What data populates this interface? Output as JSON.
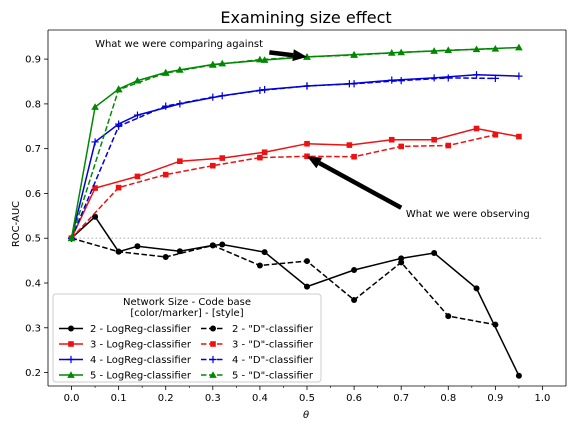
{
  "chart_data": {
    "type": "line",
    "title": "Examining size effect",
    "xlabel": "θ",
    "ylabel": "ROC-AUC",
    "xlim": [
      -0.05,
      1.05
    ],
    "ylim": [
      0.17,
      0.965
    ],
    "xticks": [
      0.0,
      0.1,
      0.2,
      0.3,
      0.4,
      0.5,
      0.6,
      0.7,
      0.8,
      0.9,
      1.0
    ],
    "xtick_labels": [
      "0.0",
      "0.1",
      "0.2",
      "0.3",
      "0.4",
      "0.5",
      "0.6",
      "0.7",
      "0.8",
      "0.9",
      "1.0"
    ],
    "yticks": [
      0.2,
      0.3,
      0.4,
      0.5,
      0.6,
      0.7,
      0.8,
      0.9
    ],
    "ytick_labels": [
      "0.2",
      "0.3",
      "0.4",
      "0.5",
      "0.6",
      "0.7",
      "0.8",
      "0.9"
    ],
    "reference_line": {
      "y": 0.5,
      "style": "dotted",
      "color": "#bbbbbb"
    },
    "grid": false,
    "legend": {
      "title": "Network Size - Code base\n[color/marker] - [style]",
      "placement": "lower-left",
      "columns": 2
    },
    "series": [
      {
        "name": "2 - LogReg-classifier",
        "color": "#000000",
        "marker": "circle",
        "dash": "solid",
        "x": [
          0.0,
          0.05,
          0.1,
          0.14,
          0.23,
          0.3,
          0.32,
          0.41,
          0.5,
          0.6,
          0.7,
          0.77,
          0.86,
          0.95
        ],
        "y": [
          0.5,
          0.548,
          0.47,
          0.482,
          0.471,
          0.484,
          0.486,
          0.469,
          0.392,
          0.429,
          0.455,
          0.467,
          0.388,
          0.193
        ]
      },
      {
        "name": "3 - LogReg-classifier",
        "color": "#ee1111",
        "marker": "square",
        "dash": "solid",
        "x": [
          0.0,
          0.05,
          0.14,
          0.23,
          0.32,
          0.41,
          0.5,
          0.59,
          0.68,
          0.77,
          0.86,
          0.95
        ],
        "y": [
          0.5,
          0.612,
          0.638,
          0.672,
          0.679,
          0.692,
          0.711,
          0.708,
          0.72,
          0.72,
          0.745,
          0.727
        ]
      },
      {
        "name": "4 - LogReg-classifier",
        "color": "#0000dd",
        "marker": "plus",
        "dash": "solid",
        "x": [
          0.0,
          0.05,
          0.1,
          0.14,
          0.23,
          0.32,
          0.41,
          0.5,
          0.59,
          0.68,
          0.77,
          0.86,
          0.95
        ],
        "y": [
          0.5,
          0.715,
          0.755,
          0.775,
          0.8,
          0.818,
          0.832,
          0.84,
          0.845,
          0.853,
          0.858,
          0.865,
          0.862
        ]
      },
      {
        "name": "5 - LogReg-classifier",
        "color": "#008800",
        "marker": "triangle",
        "dash": "solid",
        "x": [
          0.0,
          0.05,
          0.1,
          0.14,
          0.2,
          0.23,
          0.3,
          0.32,
          0.41,
          0.5,
          0.6,
          0.68,
          0.77,
          0.86,
          0.95
        ],
        "y": [
          0.5,
          0.793,
          0.833,
          0.852,
          0.87,
          0.876,
          0.888,
          0.89,
          0.898,
          0.905,
          0.91,
          0.914,
          0.918,
          0.922,
          0.926
        ]
      },
      {
        "name": "2 - \"D\"-classifier",
        "color": "#000000",
        "marker": "circle",
        "dash": "dashed",
        "x": [
          0.0,
          0.1,
          0.2,
          0.3,
          0.4,
          0.5,
          0.6,
          0.7,
          0.8,
          0.9
        ],
        "y": [
          0.5,
          0.47,
          0.458,
          0.484,
          0.439,
          0.449,
          0.362,
          0.446,
          0.326,
          0.307
        ]
      },
      {
        "name": "3 - \"D\"-classifier",
        "color": "#ee1111",
        "marker": "square",
        "dash": "dashed",
        "x": [
          0.0,
          0.1,
          0.2,
          0.3,
          0.4,
          0.5,
          0.6,
          0.7,
          0.8,
          0.9
        ],
        "y": [
          0.5,
          0.613,
          0.642,
          0.662,
          0.68,
          0.683,
          0.682,
          0.705,
          0.707,
          0.731
        ]
      },
      {
        "name": "4 - \"D\"-classifier",
        "color": "#0000dd",
        "marker": "plus",
        "dash": "dashed",
        "x": [
          0.0,
          0.1,
          0.2,
          0.3,
          0.4,
          0.5,
          0.6,
          0.7,
          0.8,
          0.9
        ],
        "y": [
          0.5,
          0.75,
          0.795,
          0.815,
          0.83,
          0.84,
          0.845,
          0.852,
          0.858,
          0.857
        ]
      },
      {
        "name": "5 - \"D\"-classifier",
        "color": "#008800",
        "marker": "triangle",
        "dash": "dashed",
        "x": [
          0.0,
          0.1,
          0.2,
          0.3,
          0.4,
          0.5,
          0.6,
          0.7,
          0.8,
          0.9
        ],
        "y": [
          0.5,
          0.832,
          0.869,
          0.887,
          0.899,
          0.905,
          0.909,
          0.915,
          0.92,
          0.923
        ]
      }
    ],
    "annotations": [
      {
        "text": "What we were comparing against",
        "text_at": [
          0.05,
          0.935
        ],
        "arrow_from": [
          0.42,
          0.915
        ],
        "arrow_to": [
          0.5,
          0.905
        ]
      },
      {
        "text": "What we were observing",
        "text_at": [
          0.71,
          0.555
        ],
        "arrow_from": [
          0.7,
          0.568
        ],
        "arrow_to": [
          0.5,
          0.683
        ]
      }
    ]
  }
}
